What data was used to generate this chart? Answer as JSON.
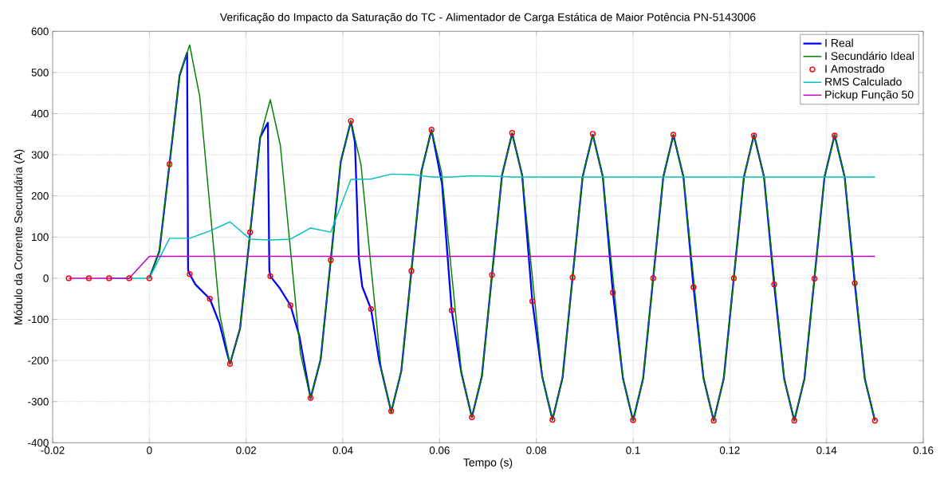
{
  "chart_data": {
    "type": "line",
    "title": "Verificação do Impacto da Saturação do TC - Alimentador de Carga Estática de Maior Potência PN-5143006",
    "xlabel": "Tempo (s)",
    "ylabel": "Módulo da Corrente Secundária (A)",
    "xlim": [
      -0.02,
      0.16
    ],
    "ylim": [
      -400,
      600
    ],
    "xticks": [
      -0.02,
      0,
      0.02,
      0.04,
      0.06,
      0.08,
      0.1,
      0.12,
      0.14,
      0.16
    ],
    "yticks": [
      -400,
      -300,
      -200,
      -100,
      0,
      100,
      200,
      300,
      400,
      500,
      600
    ],
    "grid": true,
    "legend": "top right",
    "series": [
      {
        "name": "I Real",
        "color": "#0000ff",
        "x": [
          0,
          0.00208,
          0.00417,
          0.00625,
          0.0078,
          0.008,
          0.00833,
          0.0095,
          0.0125,
          0.0145,
          0.016,
          0.01667,
          0.01875,
          0.02083,
          0.02292,
          0.0245,
          0.0248,
          0.025,
          0.027,
          0.02917,
          0.031,
          0.03333,
          0.03542,
          0.0375,
          0.03958,
          0.04167,
          0.0425,
          0.0433,
          0.044,
          0.04583,
          0.0475,
          0.05,
          0.05208,
          0.05417,
          0.05625,
          0.05833,
          0.0605,
          0.0625,
          0.0645,
          0.06667,
          0.06875,
          0.07083,
          0.07292,
          0.075,
          0.07708,
          0.07917,
          0.08125,
          0.08333,
          0.08542,
          0.0875,
          0.08958,
          0.09167,
          0.09375,
          0.09583,
          0.09792,
          0.1,
          0.10208,
          0.10417,
          0.10625,
          0.10833,
          0.11042,
          0.1125,
          0.11458,
          0.11667,
          0.11875,
          0.12083,
          0.12292,
          0.125,
          0.12708,
          0.12917,
          0.13125,
          0.13333,
          0.13542,
          0.1375,
          0.13958,
          0.14167,
          0.14375,
          0.14583,
          0.14792,
          0.15
        ],
        "values": [
          0,
          66,
          278,
          493,
          548,
          20,
          10,
          -15,
          -50,
          -110,
          -180,
          -208,
          -122,
          110,
          343,
          378,
          20,
          5,
          -25,
          -66,
          -140,
          -292,
          -197,
          44,
          284,
          382,
          330,
          50,
          -20,
          -75,
          -200,
          -325,
          -226,
          17,
          260,
          361,
          230,
          -78,
          -230,
          -338,
          -238,
          7,
          251,
          352,
          250,
          -56,
          -241,
          -344,
          -242,
          3,
          247,
          349,
          247,
          -35,
          -244,
          -346,
          -244,
          1,
          246,
          348,
          246,
          -22,
          -244,
          -346,
          -244,
          1,
          246,
          348,
          246,
          -15,
          -245,
          -346,
          -245,
          0,
          246,
          348,
          246,
          -12,
          -245,
          -346
        ]
      },
      {
        "name": "I Secundário Ideal",
        "color": "#008000",
        "x": [
          0,
          0.00208,
          0.00417,
          0.00625,
          0.00833,
          0.01042,
          0.0125,
          0.01458,
          0.01667,
          0.01875,
          0.02083,
          0.02292,
          0.025,
          0.02708,
          0.02917,
          0.03125,
          0.03333,
          0.03542,
          0.0375,
          0.03958,
          0.04167,
          0.04375,
          0.04583,
          0.04792,
          0.05,
          0.05208,
          0.05417,
          0.05625,
          0.05833,
          0.06042,
          0.0625,
          0.06458,
          0.06667,
          0.06875,
          0.07083,
          0.07292,
          0.075,
          0.07708,
          0.07917,
          0.08125,
          0.08333,
          0.08542,
          0.0875,
          0.08958,
          0.09167,
          0.09375,
          0.09583,
          0.09792,
          0.1,
          0.10208,
          0.10417,
          0.10625,
          0.10833,
          0.11042,
          0.1125,
          0.11458,
          0.11667,
          0.11875,
          0.12083,
          0.12292,
          0.125,
          0.12708,
          0.12917,
          0.13125,
          0.13333,
          0.13542,
          0.1375,
          0.13958,
          0.14167,
          0.14375,
          0.14583,
          0.14792,
          0.15
        ],
        "values": [
          0,
          66,
          278,
          493,
          567,
          441,
          175,
          -90,
          -208,
          -122,
          110,
          343,
          434,
          323,
          69,
          -184,
          -292,
          -197,
          44,
          284,
          382,
          276,
          27,
          -221,
          -325,
          -226,
          17,
          260,
          361,
          257,
          11,
          -236,
          -338,
          -238,
          7,
          251,
          352,
          250,
          4,
          -241,
          -344,
          -242,
          3,
          247,
          349,
          247,
          2,
          -244,
          -346,
          -244,
          1,
          246,
          348,
          246,
          1,
          -244,
          -346,
          -244,
          1,
          246,
          348,
          246,
          1,
          -245,
          -346,
          -245,
          0,
          246,
          348,
          246,
          0,
          -245,
          -346
        ]
      },
      {
        "name": "I Amostrado",
        "type": "scatter",
        "marker": "circle",
        "color": "#ff0000",
        "x": [
          -0.01667,
          -0.0125,
          -0.00833,
          -0.00417,
          0,
          0.00417,
          0.00833,
          0.0125,
          0.01667,
          0.02083,
          0.025,
          0.02917,
          0.03333,
          0.0375,
          0.04167,
          0.04583,
          0.05,
          0.05417,
          0.05833,
          0.0625,
          0.06667,
          0.07083,
          0.075,
          0.07917,
          0.08333,
          0.0875,
          0.09167,
          0.09583,
          0.1,
          0.10417,
          0.10833,
          0.1125,
          0.11667,
          0.12083,
          0.125,
          0.12917,
          0.13333,
          0.1375,
          0.14167,
          0.14583,
          0.15
        ],
        "values": [
          0,
          0,
          0,
          0,
          0,
          277,
          10,
          -50,
          -208,
          112,
          5,
          -66,
          -291,
          44,
          382,
          -75,
          -323,
          18,
          361,
          -78,
          -338,
          8,
          353,
          -56,
          -344,
          2,
          351,
          -35,
          -345,
          0,
          349,
          -22,
          -346,
          0,
          347,
          -15,
          -346,
          -1,
          347,
          -12,
          -346
        ]
      },
      {
        "name": "RMS Calculado",
        "color": "#00bfbf",
        "x": [
          -0.00833,
          -0.00417,
          0,
          0.00417,
          0.00833,
          0.0125,
          0.01667,
          0.02083,
          0.025,
          0.02917,
          0.03333,
          0.0375,
          0.04167,
          0.04583,
          0.05,
          0.05417,
          0.05833,
          0.0625,
          0.06667,
          0.07083,
          0.075,
          0.07917,
          0.08333,
          0.0875,
          0.09167,
          0.09583,
          0.1,
          0.10417,
          0.10833,
          0.1125,
          0.11667,
          0.12083,
          0.125,
          0.12917,
          0.13333,
          0.1375,
          0.14167,
          0.14583,
          0.15
        ],
        "values": [
          0,
          0,
          0,
          97,
          97,
          115,
          137,
          95,
          93,
          95,
          122,
          112,
          240,
          241,
          253,
          252,
          246,
          246,
          249,
          248,
          246,
          246,
          246,
          246,
          246,
          246,
          246,
          246,
          246,
          246,
          246,
          246,
          246,
          246,
          246,
          246,
          246,
          246,
          246
        ]
      },
      {
        "name": "Pickup Função 50",
        "color": "#bf00bf",
        "x": [
          -0.01667,
          -0.00417,
          0,
          0.15
        ],
        "values": [
          0,
          0,
          53,
          53
        ]
      }
    ]
  }
}
